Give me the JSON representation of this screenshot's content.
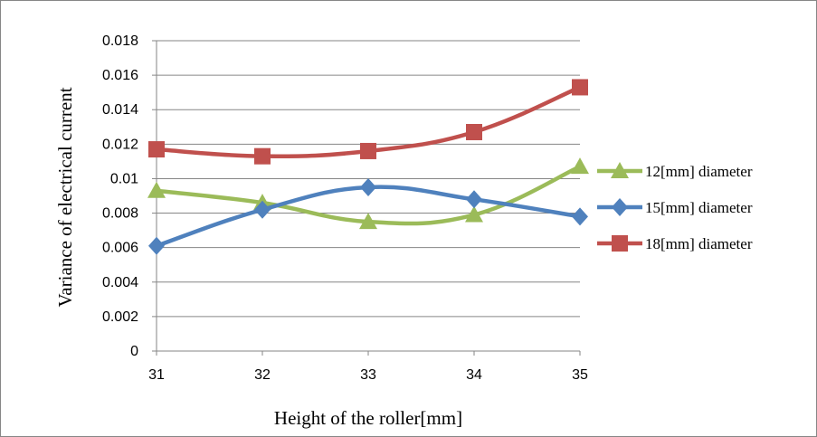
{
  "chart_data": {
    "type": "line",
    "title": "",
    "xlabel": "Height of the roller[mm]",
    "ylabel": "Variance of electrical current",
    "x": [
      31,
      32,
      33,
      34,
      35
    ],
    "x_tick_labels": [
      "31",
      "32",
      "33",
      "34",
      "35"
    ],
    "ylim": [
      0,
      0.018
    ],
    "y_tick_labels": [
      "0",
      "0.002",
      "0.004",
      "0.006",
      "0.008",
      "0.01",
      "0.012",
      "0.014",
      "0.016",
      "0.018"
    ],
    "grid": "horizontal",
    "legend_position": "right",
    "smooth": true,
    "series": [
      {
        "name": "12[mm] diameter",
        "values": [
          0.0093,
          0.0086,
          0.0075,
          0.0079,
          0.0107
        ],
        "color": "#9bbb59",
        "marker": "triangle"
      },
      {
        "name": "15[mm] diameter",
        "values": [
          0.0061,
          0.0082,
          0.0095,
          0.0088,
          0.0078
        ],
        "color": "#4f81bd",
        "marker": "diamond"
      },
      {
        "name": "18[mm] diameter",
        "values": [
          0.0117,
          0.0113,
          0.0116,
          0.0127,
          0.0153
        ],
        "color": "#c0504d",
        "marker": "square"
      }
    ]
  }
}
